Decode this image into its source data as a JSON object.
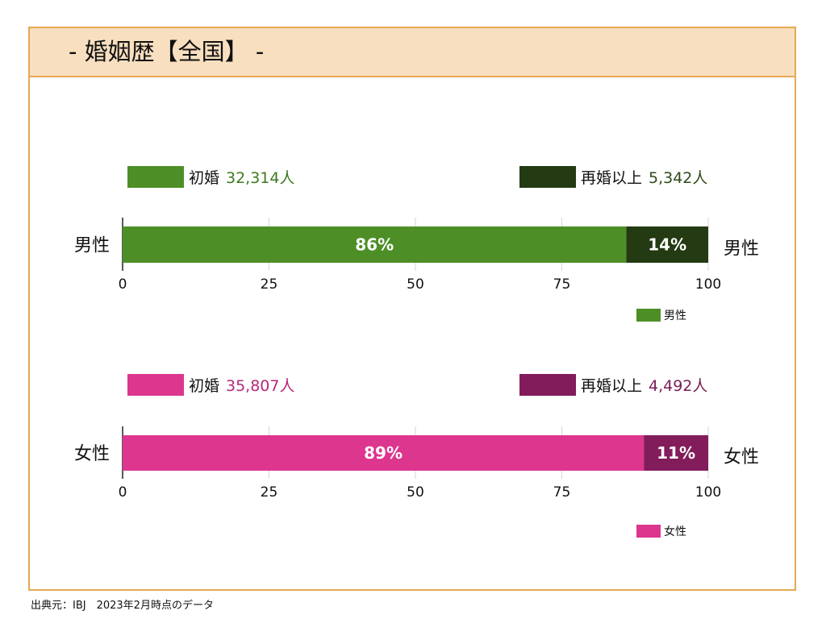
{
  "page": {
    "title": "- 婚姻歴【全国】 -",
    "source": "出典元：IBJ　2023年2月時点のデータ"
  },
  "chart_data": [
    {
      "type": "bar",
      "orientation": "horizontal",
      "stacked": true,
      "row_label": "男性",
      "row_label_right": "男性",
      "xlim": [
        0,
        100
      ],
      "ticks": [
        0,
        25,
        50,
        75,
        100
      ],
      "grid": true,
      "series": [
        {
          "name": "初婚",
          "value": 86,
          "value_label": "86%",
          "count": "32,314人",
          "color": "#4d8f26",
          "legend_color": "#4d8f26",
          "count_color": "#3e7a1f"
        },
        {
          "name": "再婚以上",
          "value": 14,
          "value_label": "14%",
          "count": "5,342人",
          "color": "#233a12",
          "legend_color": "#233a12",
          "count_color": "#2d4a17"
        }
      ],
      "legend": {
        "label": "男性",
        "color": "#4d8f26",
        "position": "bottom-right"
      }
    },
    {
      "type": "bar",
      "orientation": "horizontal",
      "stacked": true,
      "row_label": "女性",
      "row_label_right": "女性",
      "xlim": [
        0,
        100
      ],
      "ticks": [
        0,
        25,
        50,
        75,
        100
      ],
      "grid": true,
      "series": [
        {
          "name": "初婚",
          "value": 89,
          "value_label": "89%",
          "count": "35,807人",
          "color": "#dd368e",
          "legend_color": "#dd368e",
          "count_color": "#b8287a"
        },
        {
          "name": "再婚以上",
          "value": 11,
          "value_label": "11%",
          "count": "4,492人",
          "color": "#821c5a",
          "legend_color": "#821c5a",
          "count_color": "#7a1e55"
        }
      ],
      "legend": {
        "label": "女性",
        "color": "#dd368e",
        "position": "bottom-right"
      }
    }
  ]
}
